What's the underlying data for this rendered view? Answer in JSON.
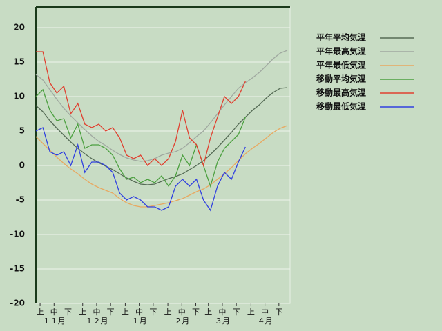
{
  "chart_data": {
    "type": "line",
    "x": [
      0,
      5,
      10,
      15,
      20,
      25,
      30,
      35,
      40,
      45,
      50,
      55,
      60,
      65,
      70,
      75,
      80,
      85,
      90,
      95,
      100,
      105,
      110,
      115,
      120,
      125,
      130,
      135,
      140,
      145,
      150,
      155,
      160,
      165,
      170,
      175,
      180
    ],
    "xlim": [
      0,
      182
    ],
    "xticks": [
      {
        "value": 3,
        "label": "上"
      },
      {
        "value": 13,
        "label": "中"
      },
      {
        "value": 23,
        "label": "下"
      },
      {
        "value": 33.5,
        "label": "上"
      },
      {
        "value": 43.5,
        "label": "中"
      },
      {
        "value": 53.5,
        "label": "下"
      },
      {
        "value": 64,
        "label": "上"
      },
      {
        "value": 74,
        "label": "中"
      },
      {
        "value": 84,
        "label": "下"
      },
      {
        "value": 94.5,
        "label": "上"
      },
      {
        "value": 104.5,
        "label": "中"
      },
      {
        "value": 114.5,
        "label": "下"
      },
      {
        "value": 123.5,
        "label": "上"
      },
      {
        "value": 133.5,
        "label": "中"
      },
      {
        "value": 143.5,
        "label": "下"
      },
      {
        "value": 154,
        "label": "上"
      },
      {
        "value": 164,
        "label": "中"
      },
      {
        "value": 174,
        "label": "下"
      }
    ],
    "x_group_labels": [
      {
        "value": 13,
        "label": "１１月"
      },
      {
        "value": 43.5,
        "label": "１２月"
      },
      {
        "value": 74,
        "label": "１月"
      },
      {
        "value": 104.5,
        "label": "２月"
      },
      {
        "value": 133.5,
        "label": "３月"
      },
      {
        "value": 164,
        "label": "４月"
      }
    ],
    "ylim": [
      -20,
      23
    ],
    "yticks": [
      -20,
      -15,
      -10,
      -5,
      0,
      5,
      10,
      15,
      20
    ],
    "grid": true,
    "series": [
      {
        "name": "平年平均気温",
        "color": "#556b55",
        "values": [
          8.7,
          7.8,
          6.5,
          5.4,
          4.4,
          3.4,
          2.5,
          1.7,
          1.0,
          0.4,
          -0.1,
          -0.6,
          -1.2,
          -1.8,
          -2.3,
          -2.7,
          -2.8,
          -2.7,
          -2.3,
          -1.9,
          -1.6,
          -1.2,
          -0.6,
          0,
          0.7,
          1.6,
          2.6,
          3.7,
          4.8,
          6,
          7.0,
          8.0,
          8.8,
          9.8,
          10.6,
          11.2,
          11.3
        ]
      },
      {
        "name": "平年最高気温",
        "color": "#a0a8a0",
        "values": [
          13.2,
          12.4,
          11,
          9.6,
          8.3,
          7.2,
          6.2,
          5.2,
          4.3,
          3.5,
          2.9,
          2.2,
          1.6,
          1.1,
          0.8,
          0.6,
          0.7,
          1.0,
          1.5,
          1.8,
          2.0,
          2.5,
          3.3,
          4.2,
          5.0,
          6.2,
          7.5,
          8.8,
          10.0,
          11.2,
          12.0,
          12.7,
          13.5,
          14.5,
          15.5,
          16.3,
          16.7
        ]
      },
      {
        "name": "平年最低気温",
        "color": "#e8a860",
        "values": [
          4.2,
          3.2,
          2.2,
          1.2,
          0.3,
          -0.5,
          -1.2,
          -2.0,
          -2.7,
          -3.2,
          -3.6,
          -4.0,
          -4.8,
          -5.4,
          -5.8,
          -6.0,
          -6.0,
          -5.8,
          -5.6,
          -5.4,
          -5.1,
          -4.8,
          -4.3,
          -3.8,
          -3.4,
          -2.8,
          -2.0,
          -1.2,
          -0.3,
          0.7,
          1.7,
          2.5,
          3.2,
          4.0,
          4.8,
          5.4,
          5.8
        ]
      },
      {
        "name": "移動平均気温",
        "color": "#4ca040",
        "values": [
          10,
          11,
          8,
          6.5,
          6.8,
          4,
          6,
          2.5,
          3,
          3,
          2.5,
          1.5,
          -0.5,
          -2,
          -1.7,
          -2.5,
          -2,
          -2.5,
          -1.5,
          -3,
          -1.5,
          1.5,
          0,
          3,
          0,
          -3,
          0.5,
          2.5,
          3.5,
          4.5,
          7,
          null,
          null,
          null,
          null,
          null,
          null
        ]
      },
      {
        "name": "移動最高気温",
        "color": "#e04030",
        "values": [
          16.5,
          16.5,
          12,
          10.5,
          11.5,
          7.5,
          9,
          6,
          5.5,
          6,
          5,
          5.5,
          4,
          1.5,
          1,
          1.5,
          0,
          1,
          0,
          1,
          3.5,
          8,
          4,
          3,
          0,
          4,
          7,
          10,
          9,
          10,
          12.2,
          null,
          null,
          null,
          null,
          null,
          null
        ]
      },
      {
        "name": "移動最低気温",
        "color": "#3040e0",
        "values": [
          5,
          5.5,
          2,
          1.5,
          2,
          0,
          3,
          -1,
          0.5,
          0.5,
          0,
          -1,
          -4,
          -5,
          -4.5,
          -5,
          -6,
          -6,
          -6.5,
          -6,
          -3,
          -2,
          -3,
          -2,
          -5,
          -6.5,
          -3,
          -1,
          -2,
          0.5,
          2.7,
          null,
          null,
          null,
          null,
          null,
          null
        ]
      }
    ]
  }
}
